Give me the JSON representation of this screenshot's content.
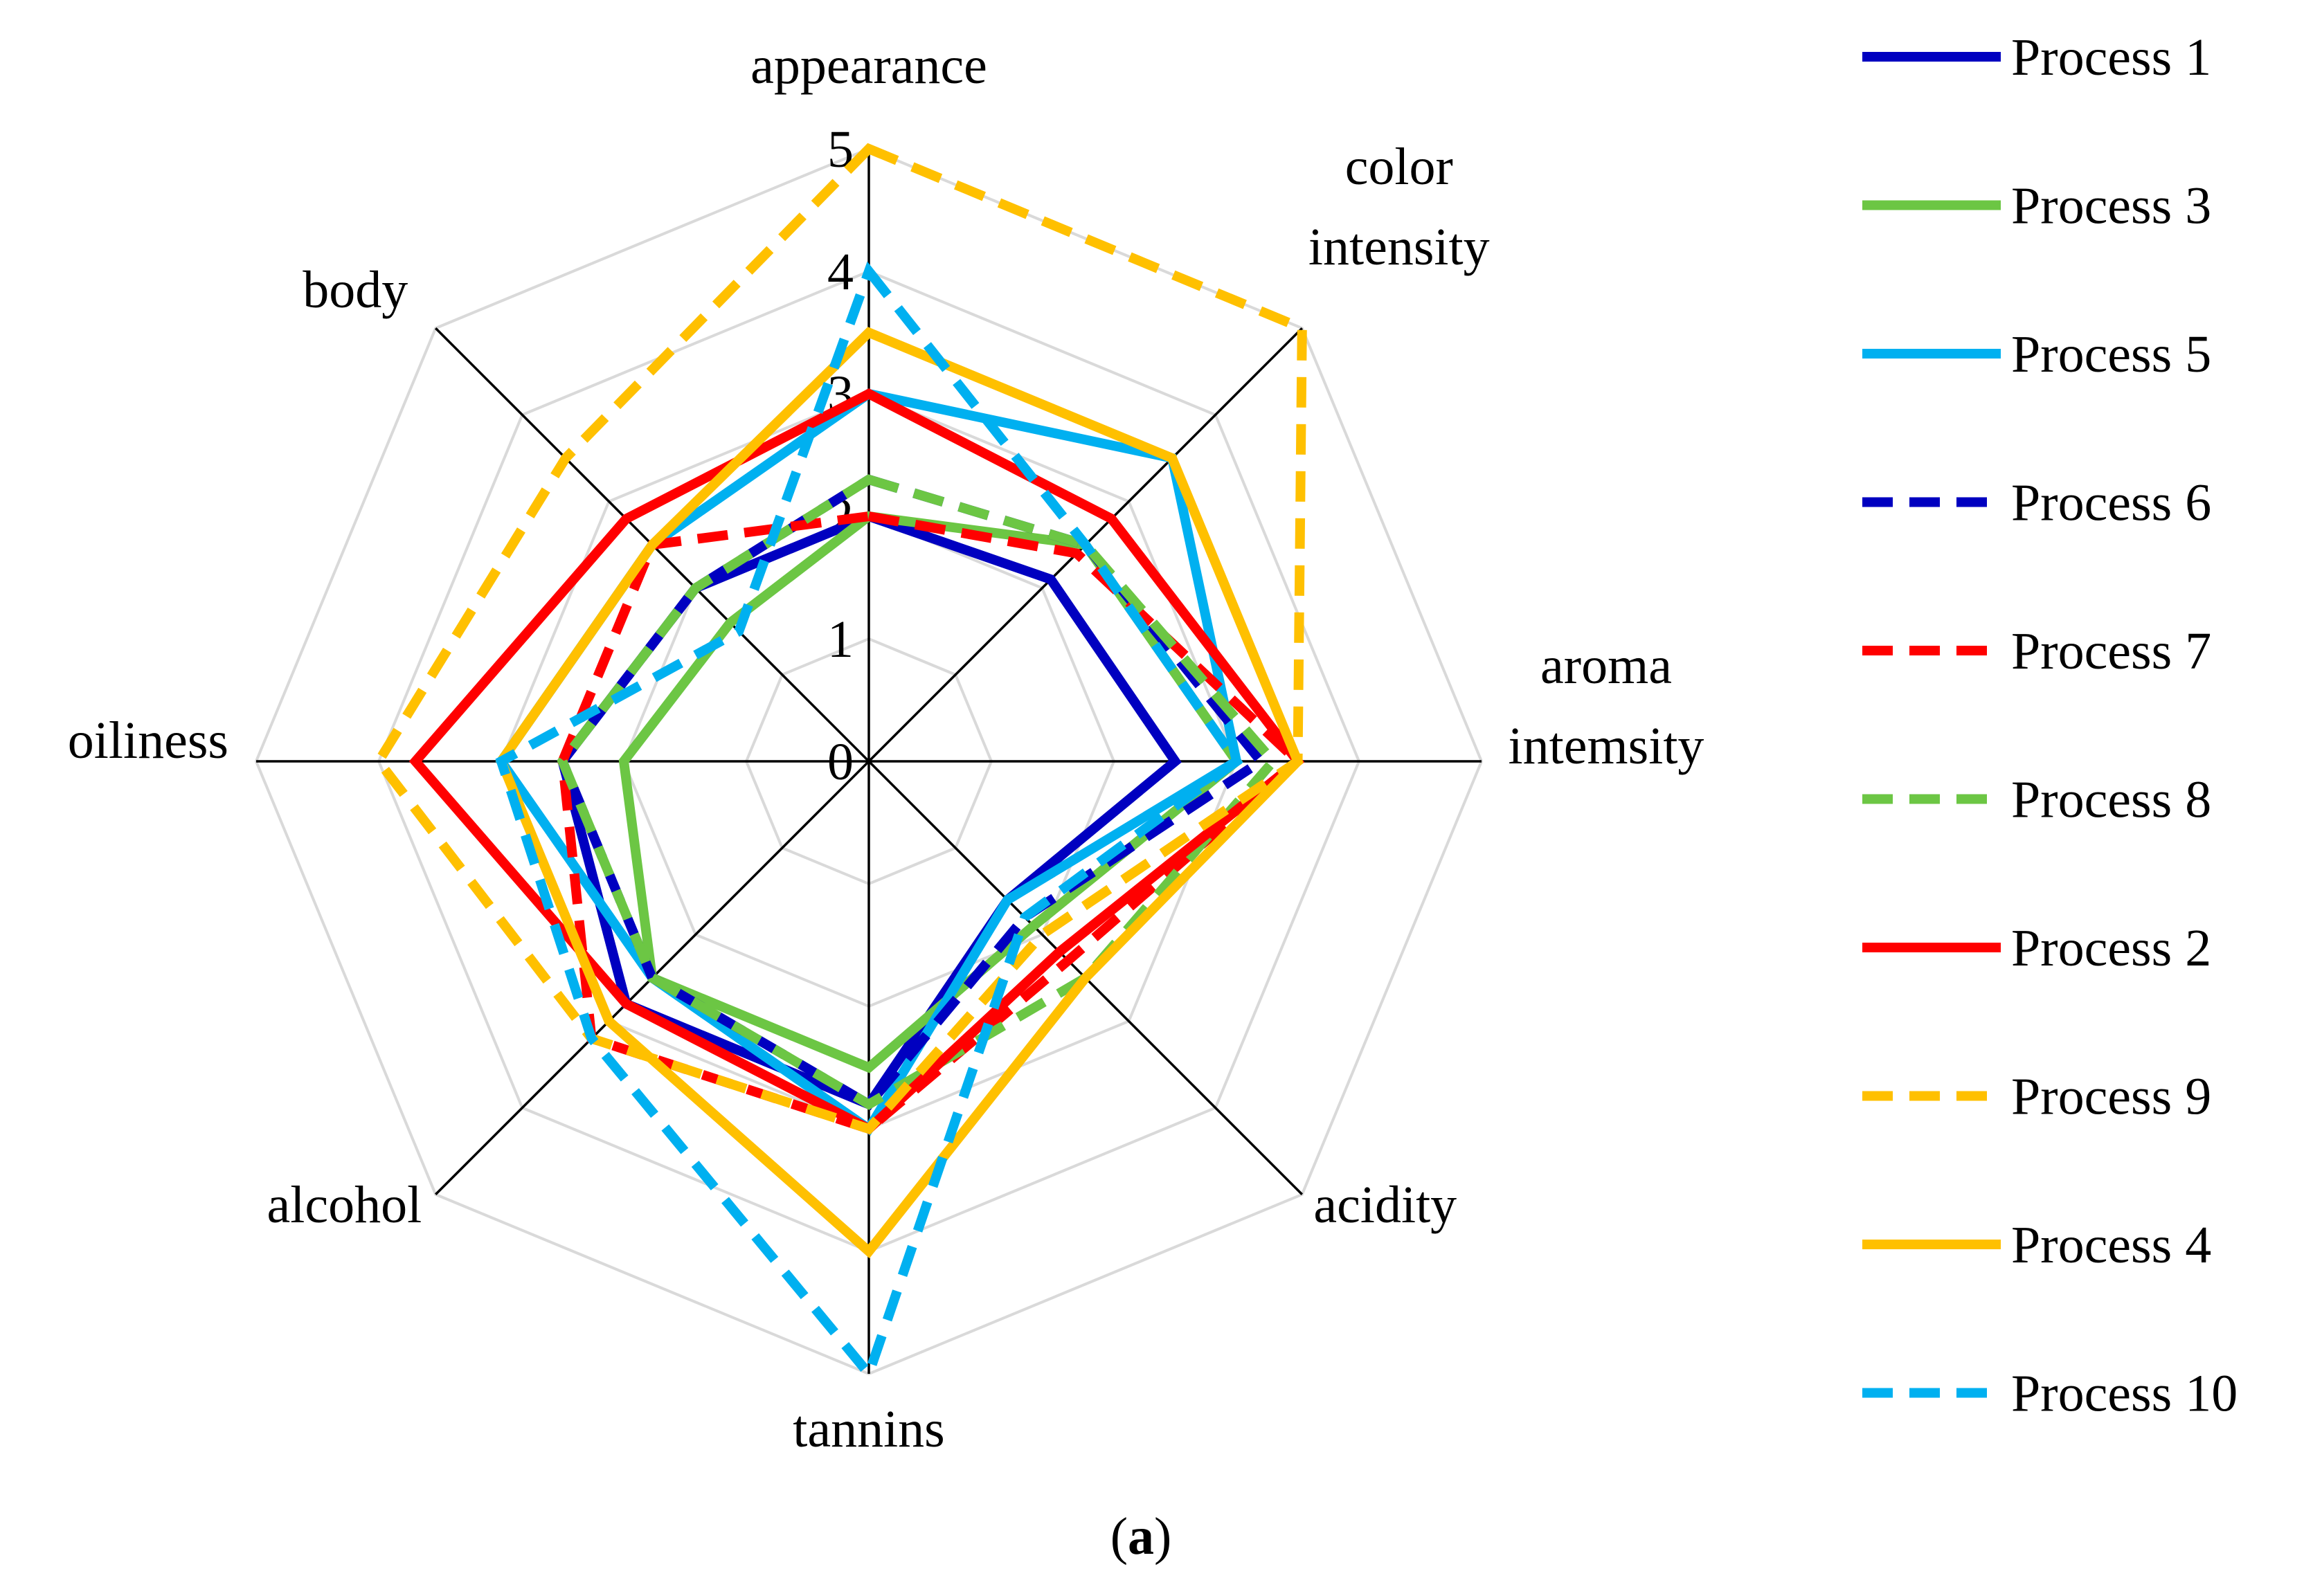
{
  "chart_data": {
    "type": "radar",
    "title": "",
    "caption_open": "(",
    "caption_letter": "a",
    "caption_close": ")",
    "axes": [
      "appearance",
      "color intensity",
      "aroma intemsity",
      "acidity",
      "tannins",
      "alcohol",
      "oiliness",
      "body"
    ],
    "axis_label_lines": [
      [
        "appearance"
      ],
      [
        "color",
        "intensity"
      ],
      [
        "aroma",
        "intemsity"
      ],
      [
        "acidity"
      ],
      [
        "tannins"
      ],
      [
        "alcohol"
      ],
      [
        "oiliness"
      ],
      [
        "body"
      ]
    ],
    "range": [
      0,
      5
    ],
    "ticks": [
      "0",
      "1",
      "2",
      "3",
      "4",
      "5"
    ],
    "grid": true,
    "legend_position": "right",
    "series": [
      {
        "name": "Process 1",
        "color": "#0000c0",
        "dash": false,
        "values": [
          2.0,
          2.1,
          2.5,
          1.6,
          2.8,
          2.8,
          2.5,
          2.0
        ]
      },
      {
        "name": "Process 3",
        "color": "#6cc644",
        "dash": false,
        "values": [
          2.0,
          2.5,
          3.0,
          1.9,
          2.5,
          2.5,
          2.0,
          1.6
        ]
      },
      {
        "name": "Process 5",
        "color": "#00b0f0",
        "dash": false,
        "values": [
          3.0,
          3.5,
          3.0,
          1.6,
          3.0,
          2.5,
          3.0,
          2.5
        ]
      },
      {
        "name": "Process 6",
        "color": "#0000c0",
        "dash": true,
        "values": [
          2.3,
          2.5,
          3.2,
          1.8,
          2.8,
          2.5,
          2.5,
          2.0
        ]
      },
      {
        "name": "Process 7",
        "color": "#ff0000",
        "dash": true,
        "values": [
          2.0,
          2.4,
          3.5,
          2.3,
          3.0,
          3.2,
          2.5,
          2.5
        ]
      },
      {
        "name": "Process 8",
        "color": "#6cc644",
        "dash": true,
        "values": [
          2.3,
          2.5,
          3.3,
          2.5,
          2.8,
          2.5,
          2.5,
          2.0
        ]
      },
      {
        "name": "Process 2",
        "color": "#ff0000",
        "dash": false,
        "values": [
          3.0,
          2.8,
          3.5,
          2.2,
          3.0,
          2.8,
          3.7,
          2.8
        ]
      },
      {
        "name": "Process 9",
        "color": "#ffc000",
        "dash": true,
        "values": [
          5.0,
          5.0,
          3.5,
          2.0,
          3.0,
          3.2,
          4.0,
          3.5
        ]
      },
      {
        "name": "Process 4",
        "color": "#ffc000",
        "dash": false,
        "values": [
          3.5,
          3.5,
          3.5,
          2.5,
          4.0,
          3.0,
          3.0,
          2.5
        ]
      },
      {
        "name": "Process 10",
        "color": "#00b0f0",
        "dash": true,
        "values": [
          4.0,
          2.5,
          3.0,
          1.8,
          5.0,
          3.2,
          3.0,
          1.5
        ]
      }
    ]
  }
}
